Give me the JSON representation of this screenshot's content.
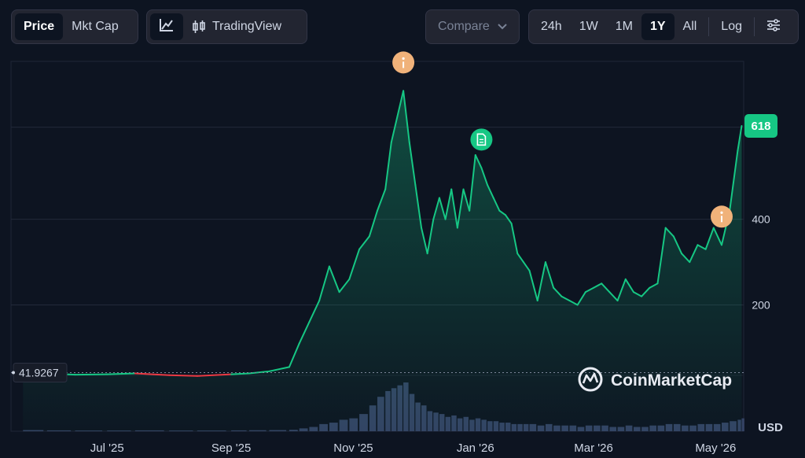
{
  "toolbar": {
    "view_tabs": [
      "Price",
      "Mkt Cap"
    ],
    "active_view": "Price",
    "chart_type_icon": "line-chart-icon",
    "tradingview_label": "TradingView",
    "tradingview_icon": "candlestick-icon",
    "compare_label": "Compare",
    "compare_icon": "chevron-down-icon",
    "ranges": [
      "24h",
      "1W",
      "1M",
      "1Y",
      "All"
    ],
    "active_range": "1Y",
    "log_label": "Log",
    "settings_icon": "sliders-icon"
  },
  "watermark": "CoinMarketCap",
  "currency": "USD",
  "colors": {
    "up": "#16c784",
    "down": "#ea3943",
    "background": "#0d1421",
    "volume": "#3b4a6e",
    "event_orange": "#f0b27a"
  },
  "chart_data": {
    "type": "area",
    "x_tick_labels": [
      "Jul '25",
      "Sep '25",
      "Nov '25",
      "Jan '26",
      "Mar '26",
      "May '26"
    ],
    "y_tick_labels": [
      "200",
      "400"
    ],
    "y_ticks": [
      200,
      400
    ],
    "ylim": [
      -95,
      765
    ],
    "baseline_label": "41.9267",
    "baseline_value": 41.9267,
    "current_price_label": "618",
    "current_price": 618,
    "grid": true,
    "x": [
      "2025-05-20",
      "2025-06-01",
      "2025-06-15",
      "2025-07-01",
      "2025-07-15",
      "2025-08-01",
      "2025-08-15",
      "2025-09-01",
      "2025-09-10",
      "2025-09-20",
      "2025-09-30",
      "2025-10-05",
      "2025-10-10",
      "2025-10-15",
      "2025-10-20",
      "2025-10-25",
      "2025-10-30",
      "2025-11-04",
      "2025-11-09",
      "2025-11-13",
      "2025-11-17",
      "2025-11-20",
      "2025-11-23",
      "2025-11-26",
      "2025-11-29",
      "2025-12-02",
      "2025-12-05",
      "2025-12-08",
      "2025-12-11",
      "2025-12-14",
      "2025-12-17",
      "2025-12-20",
      "2025-12-23",
      "2025-12-26",
      "2025-12-29",
      "2026-01-01",
      "2026-01-04",
      "2026-01-07",
      "2026-01-10",
      "2026-01-13",
      "2026-01-16",
      "2026-01-19",
      "2026-01-22",
      "2026-01-25",
      "2026-01-28",
      "2026-02-01",
      "2026-02-05",
      "2026-02-09",
      "2026-02-13",
      "2026-02-17",
      "2026-02-21",
      "2026-02-25",
      "2026-03-01",
      "2026-03-05",
      "2026-03-09",
      "2026-03-13",
      "2026-03-17",
      "2026-03-21",
      "2026-03-25",
      "2026-03-29",
      "2026-04-02",
      "2026-04-06",
      "2026-04-10",
      "2026-04-14",
      "2026-04-18",
      "2026-04-22",
      "2026-04-26",
      "2026-04-30",
      "2026-05-04",
      "2026-05-08",
      "2026-05-12",
      "2026-05-14"
    ],
    "y": [
      42,
      40,
      37,
      38,
      40,
      36,
      34,
      38,
      40,
      45,
      55,
      110,
      160,
      210,
      290,
      230,
      260,
      330,
      360,
      420,
      470,
      580,
      640,
      700,
      580,
      480,
      380,
      320,
      400,
      450,
      400,
      470,
      380,
      470,
      420,
      550,
      520,
      480,
      450,
      420,
      410,
      390,
      320,
      300,
      280,
      210,
      300,
      240,
      220,
      210,
      200,
      230,
      240,
      250,
      230,
      210,
      260,
      230,
      220,
      240,
      250,
      380,
      360,
      320,
      300,
      340,
      330,
      380,
      340,
      420,
      560,
      618
    ],
    "volume": [
      0.8,
      0.6,
      0.5,
      0.5,
      0.6,
      0.5,
      0.5,
      0.6,
      0.7,
      0.8,
      1,
      2,
      3,
      5,
      6,
      8,
      9,
      12,
      18,
      24,
      28,
      30,
      32,
      34,
      26,
      20,
      18,
      14,
      13,
      12,
      10,
      11,
      9,
      10,
      8,
      9,
      8,
      7,
      7,
      6,
      6,
      5,
      5,
      5,
      5,
      4,
      5,
      4,
      4,
      4,
      3,
      4,
      4,
      4,
      3,
      3,
      4,
      3,
      3,
      4,
      4,
      5,
      5,
      4,
      4,
      5,
      5,
      5,
      6,
      7,
      8,
      9
    ],
    "down_segment": [
      "2025-07-15",
      "2025-09-01"
    ],
    "events": [
      {
        "x": "2025-11-26",
        "type": "info",
        "icon": "info-icon"
      },
      {
        "x": "2026-01-04",
        "type": "news",
        "icon": "document-icon"
      },
      {
        "x": "2026-05-04",
        "type": "info",
        "icon": "info-icon"
      }
    ]
  }
}
